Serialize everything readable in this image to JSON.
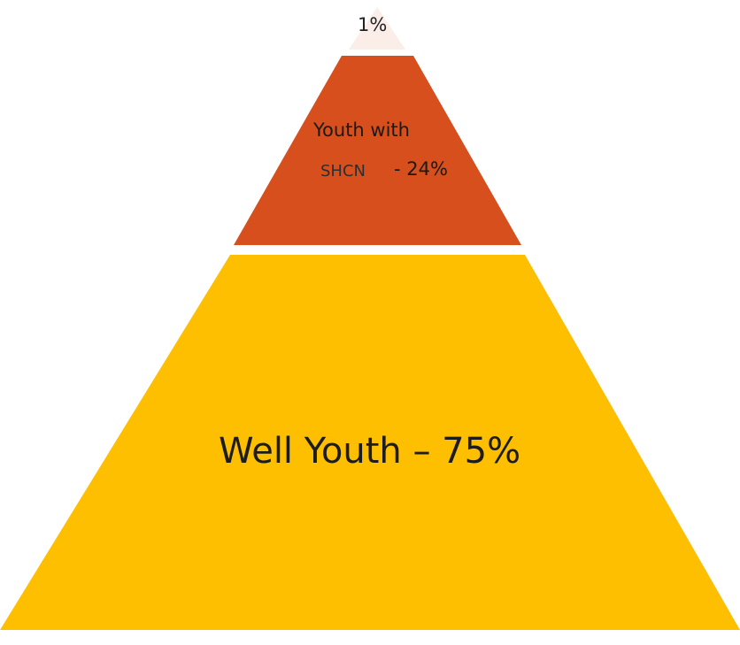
{
  "diagram": {
    "levels": [
      {
        "id": "top",
        "color": "#fbeee8",
        "share_percent": 1
      },
      {
        "id": "middle",
        "color": "#d64f1c",
        "share_percent": 24
      },
      {
        "id": "base",
        "color": "#fdbf00",
        "share_percent": 75
      }
    ],
    "labels": {
      "top": "1%",
      "middle_line1": "Youth with",
      "middle_shcn": "SHCN",
      "middle_percent": "- 24%",
      "base": "Well Youth – 75%"
    }
  }
}
